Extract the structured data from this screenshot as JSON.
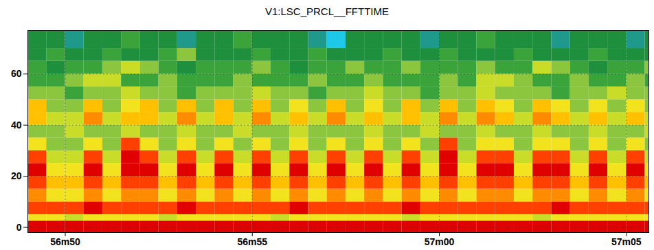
{
  "chart_data": {
    "type": "heatmap",
    "title": "V1:LSC_PRCL__FFTTIME",
    "xlim": [
      3409,
      3425.6
    ],
    "xticks": [
      {
        "value": 3410,
        "label": "56m50"
      },
      {
        "value": 3415,
        "label": "56m55"
      },
      {
        "value": 3420,
        "label": "57m00"
      },
      {
        "value": 3425,
        "label": "57m05"
      }
    ],
    "ylim": [
      -2,
      77
    ],
    "yticks": [
      0,
      20,
      40,
      60
    ],
    "grid": true,
    "tick_labels": true,
    "zlim": [
      0,
      10
    ],
    "x_edges": [
      3409,
      3409.5,
      3410,
      3410.5,
      3411,
      3411.5,
      3412,
      3412.5,
      3413,
      3413.5,
      3414,
      3414.5,
      3415,
      3415.5,
      3416,
      3416.5,
      3417,
      3417.5,
      3418,
      3418.5,
      3419,
      3419.5,
      3420,
      3420.5,
      3421,
      3421.5,
      3422,
      3422.5,
      3423,
      3423.5,
      3424,
      3424.5,
      3425,
      3425.5,
      3426
    ],
    "y_edges": [
      -2,
      2.5,
      5,
      10,
      15,
      20,
      25,
      30,
      35,
      40,
      45,
      50,
      55,
      60,
      65,
      70,
      77
    ],
    "cells": [
      [
        10,
        10,
        10,
        10,
        10,
        10,
        10,
        10,
        10,
        10,
        10,
        10,
        10,
        10,
        10,
        10,
        10,
        10,
        10,
        10,
        10,
        10,
        10,
        10,
        10,
        10,
        10,
        10,
        10,
        10,
        10,
        10,
        10,
        10
      ],
      [
        6,
        6,
        5,
        6,
        6,
        6,
        6,
        5,
        6,
        6,
        6,
        6,
        6,
        5,
        6,
        6,
        6,
        6,
        6,
        6,
        5,
        6,
        6,
        6,
        6,
        6,
        6,
        5,
        6,
        6,
        6,
        6,
        6,
        6
      ],
      [
        9,
        9,
        9,
        10,
        9,
        9,
        9,
        9,
        10,
        9,
        9,
        9,
        9,
        9,
        10,
        9,
        9,
        9,
        9,
        9,
        10,
        9,
        9,
        9,
        9,
        9,
        9,
        9,
        10,
        9,
        9,
        9,
        9,
        9
      ],
      [
        8,
        6,
        6,
        8,
        6,
        8,
        8,
        6,
        8,
        6,
        8,
        6,
        8,
        6,
        8,
        6,
        8,
        6,
        8,
        6,
        8,
        6,
        8,
        6,
        8,
        8,
        6,
        8,
        8,
        6,
        8,
        6,
        8,
        6
      ],
      [
        9,
        7,
        7,
        9,
        7,
        9,
        9,
        7,
        9,
        7,
        9,
        7,
        9,
        7,
        9,
        7,
        9,
        7,
        9,
        7,
        9,
        7,
        9,
        7,
        9,
        9,
        7,
        9,
        9,
        7,
        9,
        7,
        9,
        7
      ],
      [
        10,
        6,
        6,
        10,
        6,
        10,
        10,
        6,
        10,
        6,
        10,
        6,
        10,
        6,
        10,
        6,
        10,
        6,
        10,
        6,
        10,
        6,
        10,
        6,
        10,
        10,
        6,
        10,
        10,
        6,
        10,
        6,
        10,
        6
      ],
      [
        9,
        5,
        5,
        9,
        5,
        10,
        9,
        5,
        9,
        5,
        9,
        5,
        9,
        5,
        9,
        5,
        9,
        5,
        9,
        5,
        9,
        5,
        10,
        5,
        9,
        9,
        5,
        9,
        9,
        5,
        9,
        5,
        9,
        5
      ],
      [
        6,
        4,
        4,
        6,
        4,
        9,
        6,
        4,
        6,
        4,
        6,
        4,
        6,
        4,
        6,
        4,
        6,
        4,
        6,
        4,
        6,
        4,
        9,
        4,
        6,
        6,
        4,
        6,
        6,
        4,
        6,
        4,
        6,
        4
      ],
      [
        4,
        4,
        5,
        4,
        4,
        5,
        4,
        4,
        5,
        4,
        4,
        5,
        4,
        4,
        5,
        4,
        4,
        4,
        5,
        4,
        4,
        5,
        4,
        4,
        5,
        4,
        4,
        5,
        4,
        4,
        5,
        4,
        4,
        5
      ],
      [
        7,
        5,
        5,
        8,
        5,
        7,
        7,
        5,
        8,
        5,
        7,
        5,
        8,
        5,
        7,
        5,
        8,
        5,
        7,
        5,
        7,
        5,
        8,
        5,
        8,
        7,
        5,
        8,
        7,
        5,
        7,
        5,
        7,
        5
      ],
      [
        7,
        4,
        4,
        7,
        4,
        6,
        7,
        4,
        7,
        4,
        7,
        4,
        7,
        4,
        6,
        4,
        7,
        4,
        6,
        4,
        7,
        4,
        7,
        4,
        7,
        6,
        4,
        7,
        6,
        4,
        6,
        4,
        6,
        4
      ],
      [
        4,
        4,
        3,
        4,
        4,
        5,
        4,
        4,
        3,
        4,
        4,
        4,
        5,
        4,
        4,
        3,
        4,
        4,
        5,
        4,
        4,
        3,
        4,
        4,
        5,
        4,
        4,
        4,
        3,
        4,
        4,
        5,
        4,
        4
      ],
      [
        3,
        3,
        4,
        5,
        5,
        3,
        3,
        4,
        3,
        3,
        3,
        4,
        3,
        3,
        3,
        4,
        3,
        3,
        4,
        3,
        3,
        3,
        4,
        3,
        5,
        5,
        4,
        3,
        3,
        4,
        3,
        3,
        4,
        3
      ],
      [
        3,
        2,
        3,
        3,
        4,
        5,
        4,
        3,
        2,
        3,
        3,
        3,
        4,
        3,
        2,
        3,
        3,
        4,
        3,
        3,
        4,
        3,
        3,
        3,
        4,
        3,
        3,
        5,
        4,
        3,
        2,
        3,
        3,
        4
      ],
      [
        2,
        3,
        2,
        2,
        3,
        2,
        2,
        3,
        4,
        2,
        2,
        2,
        3,
        2,
        2,
        3,
        2,
        2,
        2,
        3,
        2,
        2,
        3,
        2,
        2,
        2,
        3,
        2,
        2,
        2,
        3,
        2,
        2,
        2
      ],
      [
        2,
        2,
        1,
        2,
        2,
        3,
        2,
        2,
        1,
        2,
        2,
        3,
        2,
        2,
        2,
        1,
        0,
        2,
        2,
        2,
        2,
        1,
        2,
        2,
        3,
        2,
        2,
        2,
        1,
        2,
        2,
        2,
        1,
        2
      ]
    ]
  }
}
